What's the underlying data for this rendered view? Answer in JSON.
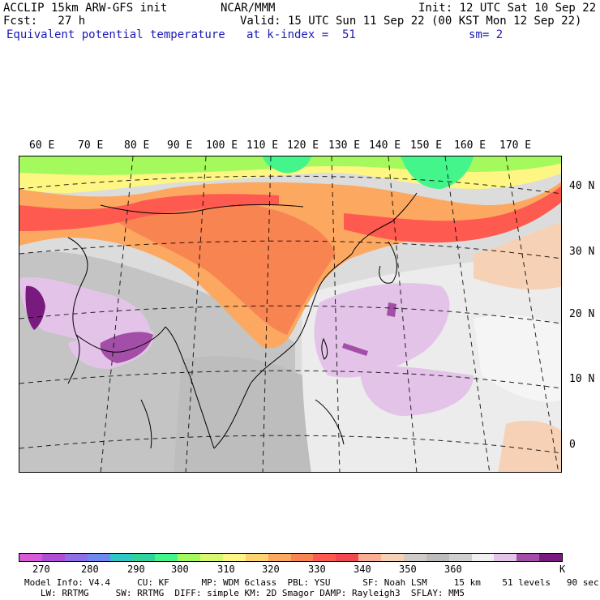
{
  "header": {
    "left1": "ACCLIP 15km ARW-GFS init",
    "left2": "Fcst:   27 h",
    "field": "Equivalent potential temperature",
    "center1": "NCAR/MMM",
    "center2": "Valid: 15 UTC Sun 11 Sep 22 (00 KST Mon 12 Sep 22)",
    "level": "at k-index =  51",
    "right1": "Init: 12 UTC Sat 10 Sep 22",
    "smooth": "sm= 2"
  },
  "lon_labels": [
    "60 E",
    "70 E",
    "80 E",
    "90 E",
    "100 E",
    "110 E",
    "120 E",
    "130 E",
    "140 E",
    "150 E",
    "160 E",
    "170 E"
  ],
  "lat_labels": [
    "40 N",
    "30 N",
    "20 N",
    "10 N",
    "0"
  ],
  "colorbar": {
    "colors": [
      "#d75ad7",
      "#b04fd6",
      "#8f6ee6",
      "#6f88f2",
      "#33c6c6",
      "#2fd39b",
      "#43f58b",
      "#a4f95c",
      "#d8f870",
      "#fdf683",
      "#fdd270",
      "#fca860",
      "#f88452",
      "#fe5a50",
      "#f34752",
      "#fbae92",
      "#f7d1b5",
      "#d2cac6",
      "#bcbcbc",
      "#cfcfcf",
      "#f0f0f0",
      "#e3c4e8",
      "#a34fa7",
      "#791a7f"
    ],
    "ticks": [
      "270",
      "280",
      "290",
      "300",
      "310",
      "320",
      "330",
      "340",
      "350",
      "360",
      "K"
    ]
  },
  "footer": {
    "line1": "Model Info: V4.4     CU: KF      MP: WDM 6class  PBL: YSU      SF: Noah LSM     15 km    51 levels   90 sec",
    "line2": "   LW: RRTMG     SW: RRTMG  DIFF: simple KM: 2D Smagor DAMP: Rayleigh3  SFLAY: MM5"
  }
}
